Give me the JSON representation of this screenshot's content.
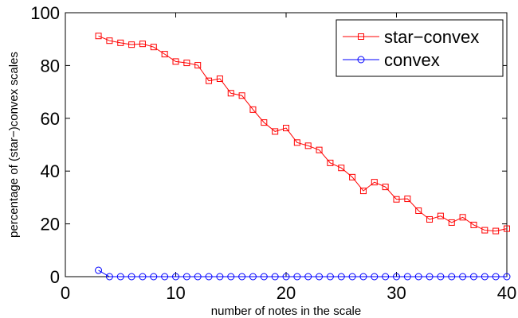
{
  "chart_data": {
    "type": "line",
    "title": "",
    "xlabel": "number of notes in the scale",
    "ylabel": "percentage of (star−)convex scales",
    "xlim": [
      0,
      40
    ],
    "ylim": [
      0,
      100
    ],
    "xticks": [
      0,
      10,
      20,
      30,
      40
    ],
    "yticks": [
      0,
      20,
      40,
      60,
      80,
      100
    ],
    "grid": false,
    "legend_position": "top-right",
    "x": [
      3,
      4,
      5,
      6,
      7,
      8,
      9,
      10,
      11,
      12,
      13,
      14,
      15,
      16,
      17,
      18,
      19,
      20,
      21,
      22,
      23,
      24,
      25,
      26,
      27,
      28,
      29,
      30,
      31,
      32,
      33,
      34,
      35,
      36,
      37,
      38,
      39,
      40
    ],
    "series": [
      {
        "name": "star−convex",
        "color": "#ff0000",
        "marker": "square",
        "values": [
          91.2,
          89.4,
          88.6,
          87.9,
          88.2,
          87.0,
          84.3,
          81.5,
          81.0,
          80.1,
          74.2,
          75.0,
          69.5,
          68.6,
          63.3,
          58.4,
          55.0,
          56.3,
          50.8,
          49.6,
          48.0,
          43.1,
          41.2,
          37.7,
          32.5,
          35.8,
          34.0,
          29.3,
          29.5,
          25.0,
          21.7,
          23.0,
          20.5,
          22.5,
          19.6,
          17.6,
          17.3,
          18.2
        ]
      },
      {
        "name": "convex",
        "color": "#0000ff",
        "marker": "circle",
        "values": [
          2.4,
          0,
          0,
          0,
          0,
          0,
          0,
          0,
          0,
          0,
          0,
          0,
          0,
          0,
          0,
          0,
          0,
          0,
          0,
          0,
          0,
          0,
          0,
          0,
          0,
          0,
          0,
          0,
          0,
          0,
          0,
          0,
          0,
          0,
          0,
          0,
          0,
          0
        ]
      }
    ]
  }
}
